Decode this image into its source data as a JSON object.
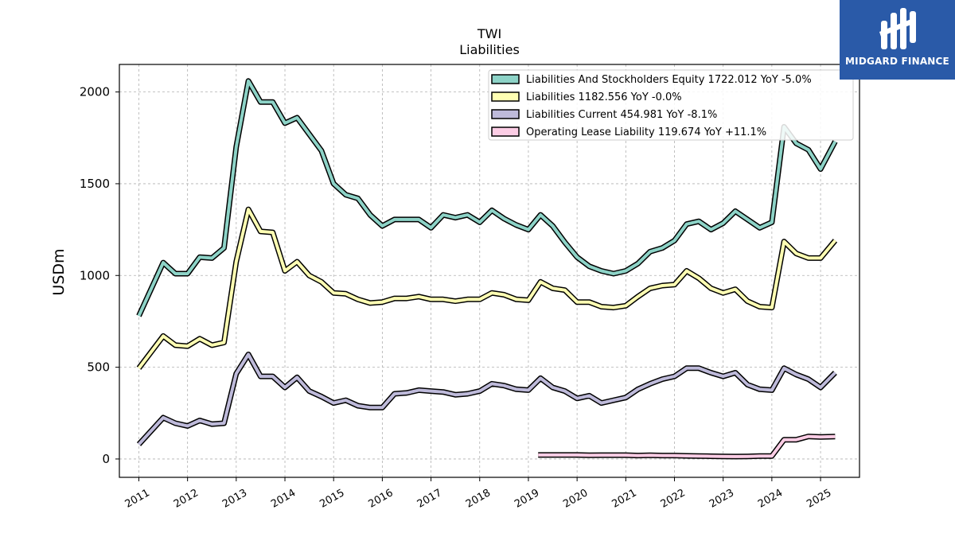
{
  "logo": {
    "text": "MIDGARD FINANCE",
    "color": "#2a5aa8"
  },
  "chart_data": {
    "type": "line",
    "title": "TWI",
    "subtitle": "Liabilities",
    "xlabel": "",
    "ylabel": "USDm",
    "ylim": [
      -100,
      2150
    ],
    "xlim": [
      2010.6,
      2025.8
    ],
    "yticks": [
      0,
      500,
      1000,
      1500,
      2000
    ],
    "xticks": [
      2011,
      2012,
      2013,
      2014,
      2015,
      2016,
      2017,
      2018,
      2019,
      2020,
      2021,
      2022,
      2023,
      2024,
      2025
    ],
    "grid": true,
    "legend_position": "top-right",
    "series": [
      {
        "name": "Liabilities And Stockholders Equity  1722.012 YoY -5.0%",
        "color": "#8dd3c7",
        "x": [
          2011.0,
          2011.5,
          2011.75,
          2012.0,
          2012.25,
          2012.5,
          2012.75,
          2013.0,
          2013.25,
          2013.5,
          2013.75,
          2014.0,
          2014.25,
          2014.5,
          2014.75,
          2015.0,
          2015.25,
          2015.5,
          2015.75,
          2016.0,
          2016.25,
          2016.5,
          2016.75,
          2017.0,
          2017.25,
          2017.5,
          2017.75,
          2018.0,
          2018.25,
          2018.5,
          2018.75,
          2019.0,
          2019.25,
          2019.5,
          2019.75,
          2020.0,
          2020.25,
          2020.5,
          2020.75,
          2021.0,
          2021.25,
          2021.5,
          2021.75,
          2022.0,
          2022.25,
          2022.5,
          2022.75,
          2023.0,
          2023.25,
          2023.5,
          2023.75,
          2024.0,
          2024.25,
          2024.5,
          2024.75,
          2025.0,
          2025.3
        ],
        "values": [
          780,
          1070,
          1010,
          1010,
          1100,
          1095,
          1150,
          1700,
          2060,
          1945,
          1945,
          1830,
          1860,
          1770,
          1680,
          1500,
          1440,
          1420,
          1330,
          1270,
          1305,
          1305,
          1305,
          1260,
          1330,
          1315,
          1330,
          1290,
          1355,
          1310,
          1275,
          1250,
          1330,
          1270,
          1180,
          1100,
          1050,
          1025,
          1010,
          1025,
          1065,
          1130,
          1150,
          1190,
          1280,
          1295,
          1250,
          1285,
          1350,
          1305,
          1260,
          1290,
          1810,
          1720,
          1685,
          1580,
          1730
        ]
      },
      {
        "name": "Liabilities  1182.556 YoY -0.0%",
        "color": "#ffffb3",
        "x": [
          2011.0,
          2011.5,
          2011.75,
          2012.0,
          2012.25,
          2012.5,
          2012.75,
          2013.0,
          2013.25,
          2013.5,
          2013.75,
          2014.0,
          2014.25,
          2014.5,
          2014.75,
          2015.0,
          2015.25,
          2015.5,
          2015.75,
          2016.0,
          2016.25,
          2016.5,
          2016.75,
          2017.0,
          2017.25,
          2017.5,
          2017.75,
          2018.0,
          2018.25,
          2018.5,
          2018.75,
          2019.0,
          2019.25,
          2019.5,
          2019.75,
          2020.0,
          2020.25,
          2020.5,
          2020.75,
          2021.0,
          2021.25,
          2021.5,
          2021.75,
          2022.0,
          2022.25,
          2022.5,
          2022.75,
          2023.0,
          2023.25,
          2023.5,
          2023.75,
          2024.0,
          2024.25,
          2024.5,
          2024.75,
          2025.0,
          2025.3
        ],
        "values": [
          495,
          670,
          620,
          615,
          655,
          620,
          635,
          1075,
          1360,
          1240,
          1235,
          1025,
          1075,
          1000,
          965,
          905,
          900,
          870,
          850,
          855,
          875,
          875,
          885,
          870,
          870,
          860,
          870,
          870,
          905,
          895,
          870,
          865,
          965,
          930,
          920,
          855,
          855,
          830,
          825,
          835,
          885,
          930,
          945,
          950,
          1025,
          985,
          930,
          905,
          925,
          860,
          830,
          825,
          1185,
          1120,
          1095,
          1095,
          1190
        ]
      },
      {
        "name": "Liabilities Current  454.981 YoY -8.1%",
        "color": "#bebada",
        "x": [
          2011.0,
          2011.5,
          2011.75,
          2012.0,
          2012.25,
          2012.5,
          2012.75,
          2013.0,
          2013.25,
          2013.5,
          2013.75,
          2014.0,
          2014.25,
          2014.5,
          2014.75,
          2015.0,
          2015.25,
          2015.5,
          2015.75,
          2016.0,
          2016.25,
          2016.5,
          2016.75,
          2017.0,
          2017.25,
          2017.5,
          2017.75,
          2018.0,
          2018.25,
          2018.5,
          2018.75,
          2019.0,
          2019.25,
          2019.5,
          2019.75,
          2020.0,
          2020.25,
          2020.5,
          2020.75,
          2021.0,
          2021.25,
          2021.5,
          2021.75,
          2022.0,
          2022.25,
          2022.5,
          2022.75,
          2023.0,
          2023.25,
          2023.5,
          2023.75,
          2024.0,
          2024.25,
          2024.5,
          2024.75,
          2025.0,
          2025.3
        ],
        "values": [
          80,
          225,
          195,
          180,
          210,
          190,
          195,
          465,
          570,
          450,
          450,
          390,
          445,
          370,
          340,
          305,
          320,
          290,
          280,
          280,
          355,
          360,
          375,
          370,
          365,
          350,
          355,
          370,
          410,
          400,
          380,
          375,
          440,
          390,
          370,
          330,
          345,
          305,
          320,
          335,
          380,
          410,
          435,
          450,
          495,
          495,
          470,
          450,
          470,
          405,
          380,
          375,
          495,
          460,
          435,
          390,
          470
        ]
      },
      {
        "name": "Operating Lease Liability  119.674 YoY +11.1%",
        "color": "#fccde5",
        "x": [
          2019.2,
          2019.5,
          2019.75,
          2020.0,
          2020.25,
          2020.5,
          2020.75,
          2021.0,
          2021.25,
          2021.5,
          2021.75,
          2022.0,
          2022.25,
          2022.5,
          2022.75,
          2023.0,
          2023.25,
          2023.5,
          2023.75,
          2024.0,
          2024.25,
          2024.5,
          2024.75,
          2025.0,
          2025.3
        ],
        "values": [
          22,
          22,
          22,
          22,
          20,
          21,
          21,
          21,
          19,
          20,
          19,
          19,
          17,
          16,
          15,
          14,
          13,
          14,
          16,
          16,
          105,
          105,
          123,
          120,
          122
        ]
      }
    ]
  }
}
